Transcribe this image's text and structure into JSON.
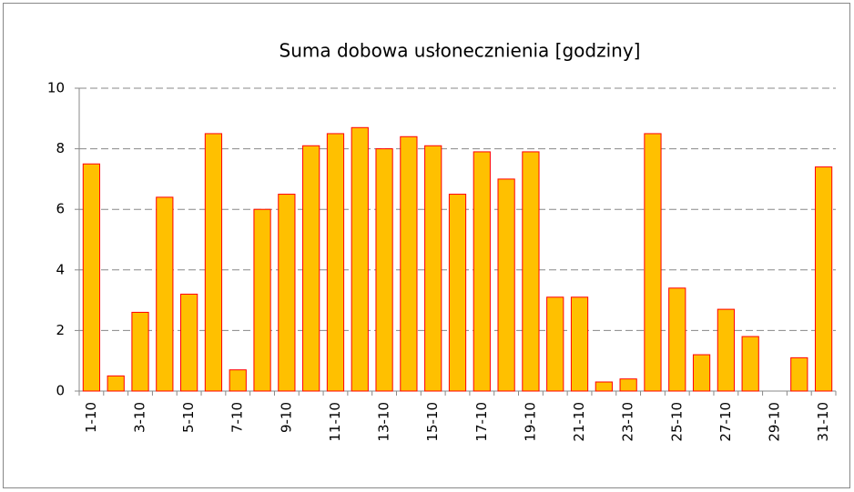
{
  "chart_data": {
    "type": "bar",
    "title": "Suma dobowa usłonecznienia [godziny]",
    "categories": [
      "1-10",
      null,
      "3-10",
      null,
      "5-10",
      null,
      "7-10",
      null,
      "9-10",
      null,
      "11-10",
      null,
      "13-10",
      null,
      "15-10",
      null,
      "17-10",
      null,
      "19-10",
      null,
      "21-10",
      null,
      "23-10",
      null,
      "25-10",
      null,
      "27-10",
      null,
      "29-10",
      null,
      "31-10"
    ],
    "values": [
      7.5,
      0.5,
      2.6,
      6.4,
      3.2,
      8.5,
      0.7,
      6.0,
      6.5,
      8.1,
      8.5,
      8.7,
      8.0,
      8.4,
      8.1,
      6.5,
      7.9,
      7.0,
      7.9,
      3.1,
      3.1,
      0.3,
      0.4,
      8.5,
      3.4,
      1.2,
      2.7,
      1.8,
      0,
      1.1,
      7.4
    ],
    "color": "#ffc000",
    "edge_color": "#ff0000",
    "ylim": [
      0,
      10
    ],
    "yticks": [
      0,
      2,
      4,
      6,
      8,
      10
    ],
    "grid": true
  }
}
